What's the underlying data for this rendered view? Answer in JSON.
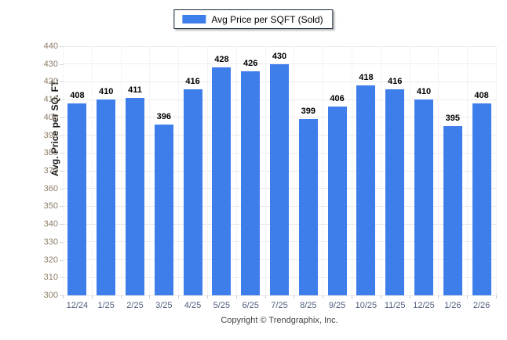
{
  "legend": {
    "label": "Avg Price per SQFT (Sold)"
  },
  "footer": {
    "copyright": "Copyright © Trendgraphix, Inc."
  },
  "colors": {
    "bar": "#3e7eeb",
    "gridline": "#ebebeb",
    "column_line": "#f4f4f4",
    "y_tick_text": "#8d7e68",
    "x_tick_text": "#4f5d7c",
    "value_label_text": "#000000",
    "legend_border": "#172635",
    "footer_text": "#444444"
  },
  "chart_data": {
    "type": "bar",
    "title": "",
    "series_name": "Avg Price per SQFT (Sold)",
    "categories": [
      "12/24",
      "1/25",
      "2/25",
      "3/25",
      "4/25",
      "5/25",
      "6/25",
      "7/25",
      "8/25",
      "9/25",
      "10/25",
      "11/25",
      "12/25",
      "1/26",
      "2/26"
    ],
    "values": [
      408,
      410,
      411,
      396,
      416,
      428,
      426,
      430,
      399,
      406,
      418,
      416,
      410,
      395,
      408
    ],
    "xlabel": "",
    "ylabel": "Avg. Price per SQ. FT.",
    "ylim": [
      300,
      440
    ],
    "yticks": [
      300,
      310,
      320,
      330,
      340,
      350,
      360,
      370,
      380,
      390,
      400,
      410,
      420,
      430,
      440
    ],
    "grid": true,
    "value_labels": true,
    "legend_position": "top-center"
  }
}
